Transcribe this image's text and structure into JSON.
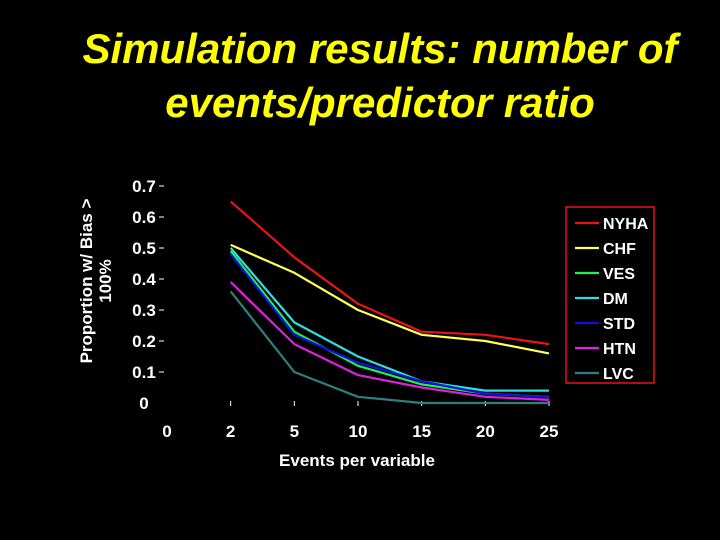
{
  "slide": {
    "title_line1": "Simulation results: number of",
    "title_line2": "events/predictor ratio"
  },
  "colors": {
    "background": "#000000",
    "title": "#ffff00",
    "text": "#ffffff"
  },
  "chart_data": {
    "type": "line",
    "title": "",
    "xlabel": "Events per variable",
    "ylabel_line1": "Proportion w/ Bias >",
    "ylabel_line2": "100%",
    "x": [
      "0",
      "2",
      "5",
      "10",
      "15",
      "20",
      "25"
    ],
    "ylim": [
      0,
      0.7
    ],
    "yticks": [
      "0",
      "0.1",
      "0.2",
      "0.3",
      "0.4",
      "0.5",
      "0.6",
      "0.7"
    ],
    "grid": false,
    "legend_position": "right",
    "series": [
      {
        "name": "NYHA",
        "color": "#e8141c",
        "values": [
          null,
          0.65,
          0.47,
          0.32,
          0.23,
          0.22,
          0.19
        ]
      },
      {
        "name": "CHF",
        "color": "#ffff55",
        "values": [
          null,
          0.51,
          0.42,
          0.3,
          0.22,
          0.2,
          0.16
        ]
      },
      {
        "name": "VES",
        "color": "#22ee55",
        "values": [
          null,
          0.49,
          0.23,
          0.12,
          0.06,
          0.03,
          0.02
        ]
      },
      {
        "name": "DM",
        "color": "#33dddd",
        "values": [
          null,
          0.5,
          0.26,
          0.15,
          0.07,
          0.04,
          0.04
        ]
      },
      {
        "name": "STD",
        "color": "#1010e0",
        "values": [
          null,
          0.48,
          0.22,
          0.13,
          0.07,
          0.03,
          0.02
        ]
      },
      {
        "name": "HTN",
        "color": "#e020e0",
        "values": [
          null,
          0.39,
          0.19,
          0.09,
          0.05,
          0.02,
          0.01
        ]
      },
      {
        "name": "LVC",
        "color": "#2f7f7f",
        "values": [
          null,
          0.36,
          0.1,
          0.02,
          0.0,
          0.0,
          0.0
        ]
      }
    ]
  }
}
